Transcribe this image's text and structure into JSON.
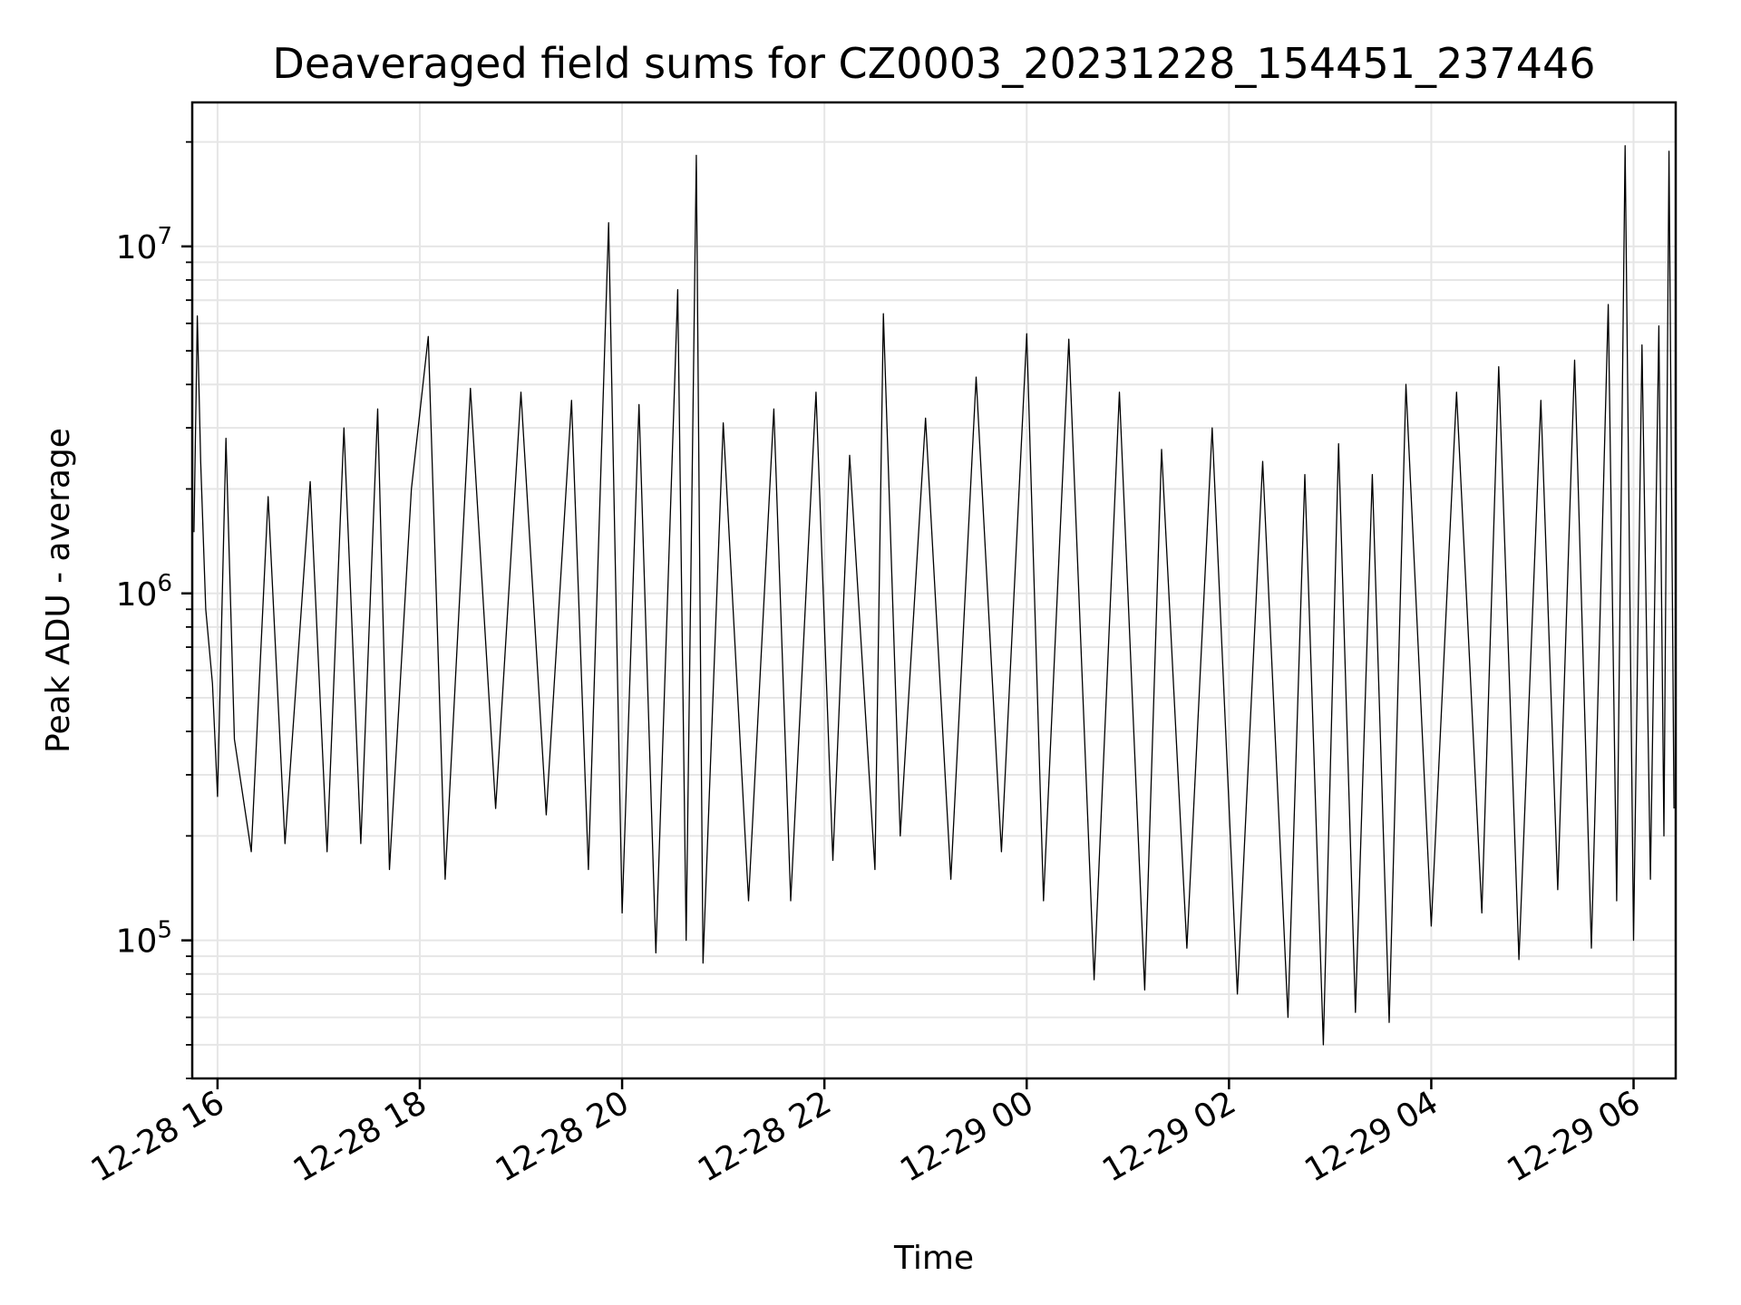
{
  "chart_data": {
    "type": "line",
    "title": "Deaveraged field sums for CZ0003_20231228_154451_237446",
    "xlabel": "Time",
    "ylabel": "Peak ADU - average",
    "yscale": "log",
    "xlim": [
      "2023-12-28 15:45",
      "2023-12-29 06:25"
    ],
    "ylim": [
      40000,
      26000000
    ],
    "grid": true,
    "line_color": "#000000",
    "x_ticks": [
      {
        "value": "2023-12-28 16:00",
        "label": "12-28 16"
      },
      {
        "value": "2023-12-28 18:00",
        "label": "12-28 18"
      },
      {
        "value": "2023-12-28 20:00",
        "label": "12-28 20"
      },
      {
        "value": "2023-12-28 22:00",
        "label": "12-28 22"
      },
      {
        "value": "2023-12-29 00:00",
        "label": "12-29 00"
      },
      {
        "value": "2023-12-29 02:00",
        "label": "12-29 02"
      },
      {
        "value": "2023-12-29 04:00",
        "label": "12-29 04"
      },
      {
        "value": "2023-12-29 06:00",
        "label": "12-29 06"
      }
    ],
    "y_ticks": [
      {
        "value": 100000,
        "base": "10",
        "exp": "5"
      },
      {
        "value": 1000000,
        "base": "10",
        "exp": "6"
      },
      {
        "value": 10000000,
        "base": "10",
        "exp": "7"
      }
    ],
    "series": [
      {
        "points": [
          [
            "2023-12-28 15:46",
            1500000
          ],
          [
            "2023-12-28 15:48",
            6300000
          ],
          [
            "2023-12-28 15:50",
            2400000
          ],
          [
            "2023-12-28 15:53",
            900000
          ],
          [
            "2023-12-28 15:57",
            550000
          ],
          [
            "2023-12-28 16:00",
            260000
          ],
          [
            "2023-12-28 16:05",
            2800000
          ],
          [
            "2023-12-28 16:10",
            380000
          ],
          [
            "2023-12-28 16:20",
            180000
          ],
          [
            "2023-12-28 16:30",
            1900000
          ],
          [
            "2023-12-28 16:40",
            190000
          ],
          [
            "2023-12-28 16:55",
            2100000
          ],
          [
            "2023-12-28 17:05",
            180000
          ],
          [
            "2023-12-28 17:15",
            3000000
          ],
          [
            "2023-12-28 17:25",
            190000
          ],
          [
            "2023-12-28 17:35",
            3400000
          ],
          [
            "2023-12-28 17:42",
            160000
          ],
          [
            "2023-12-28 17:55",
            2000000
          ],
          [
            "2023-12-28 18:05",
            5500000
          ],
          [
            "2023-12-28 18:15",
            150000
          ],
          [
            "2023-12-28 18:30",
            3900000
          ],
          [
            "2023-12-28 18:45",
            240000
          ],
          [
            "2023-12-28 19:00",
            3800000
          ],
          [
            "2023-12-28 19:15",
            230000
          ],
          [
            "2023-12-28 19:30",
            3600000
          ],
          [
            "2023-12-28 19:40",
            160000
          ],
          [
            "2023-12-28 19:52",
            11700000
          ],
          [
            "2023-12-28 20:00",
            120000
          ],
          [
            "2023-12-28 20:10",
            3500000
          ],
          [
            "2023-12-28 20:20",
            92000
          ],
          [
            "2023-12-28 20:33",
            7500000
          ],
          [
            "2023-12-28 20:38",
            100000
          ],
          [
            "2023-12-28 20:44",
            18300000
          ],
          [
            "2023-12-28 20:48",
            86000
          ],
          [
            "2023-12-28 21:00",
            3100000
          ],
          [
            "2023-12-28 21:15",
            130000
          ],
          [
            "2023-12-28 21:30",
            3400000
          ],
          [
            "2023-12-28 21:40",
            130000
          ],
          [
            "2023-12-28 21:55",
            3800000
          ],
          [
            "2023-12-28 22:05",
            170000
          ],
          [
            "2023-12-28 22:15",
            2500000
          ],
          [
            "2023-12-28 22:30",
            160000
          ],
          [
            "2023-12-28 22:35",
            6400000
          ],
          [
            "2023-12-28 22:45",
            200000
          ],
          [
            "2023-12-28 23:00",
            3200000
          ],
          [
            "2023-12-28 23:15",
            150000
          ],
          [
            "2023-12-28 23:30",
            4200000
          ],
          [
            "2023-12-28 23:45",
            180000
          ],
          [
            "2023-12-29 00:00",
            5600000
          ],
          [
            "2023-12-29 00:10",
            130000
          ],
          [
            "2023-12-29 00:25",
            5400000
          ],
          [
            "2023-12-29 00:40",
            77000
          ],
          [
            "2023-12-29 00:55",
            3800000
          ],
          [
            "2023-12-29 01:10",
            72000
          ],
          [
            "2023-12-29 01:20",
            2600000
          ],
          [
            "2023-12-29 01:35",
            95000
          ],
          [
            "2023-12-29 01:50",
            3000000
          ],
          [
            "2023-12-29 02:05",
            70000
          ],
          [
            "2023-12-29 02:20",
            2400000
          ],
          [
            "2023-12-29 02:35",
            60000
          ],
          [
            "2023-12-29 02:45",
            2200000
          ],
          [
            "2023-12-29 02:56",
            50000
          ],
          [
            "2023-12-29 03:05",
            2700000
          ],
          [
            "2023-12-29 03:15",
            62000
          ],
          [
            "2023-12-29 03:25",
            2200000
          ],
          [
            "2023-12-29 03:35",
            58000
          ],
          [
            "2023-12-29 03:45",
            4000000
          ],
          [
            "2023-12-29 04:00",
            110000
          ],
          [
            "2023-12-29 04:15",
            3800000
          ],
          [
            "2023-12-29 04:30",
            120000
          ],
          [
            "2023-12-29 04:40",
            4500000
          ],
          [
            "2023-12-29 04:52",
            88000
          ],
          [
            "2023-12-29 05:05",
            3600000
          ],
          [
            "2023-12-29 05:15",
            140000
          ],
          [
            "2023-12-29 05:25",
            4700000
          ],
          [
            "2023-12-29 05:35",
            95000
          ],
          [
            "2023-12-29 05:45",
            6800000
          ],
          [
            "2023-12-29 05:50",
            130000
          ],
          [
            "2023-12-29 05:55",
            19500000
          ],
          [
            "2023-12-29 06:00",
            100000
          ],
          [
            "2023-12-29 06:05",
            5200000
          ],
          [
            "2023-12-29 06:10",
            150000
          ],
          [
            "2023-12-29 06:15",
            5900000
          ],
          [
            "2023-12-29 06:18",
            200000
          ],
          [
            "2023-12-29 06:21",
            18800000
          ],
          [
            "2023-12-29 06:24",
            240000
          ]
        ]
      }
    ]
  }
}
